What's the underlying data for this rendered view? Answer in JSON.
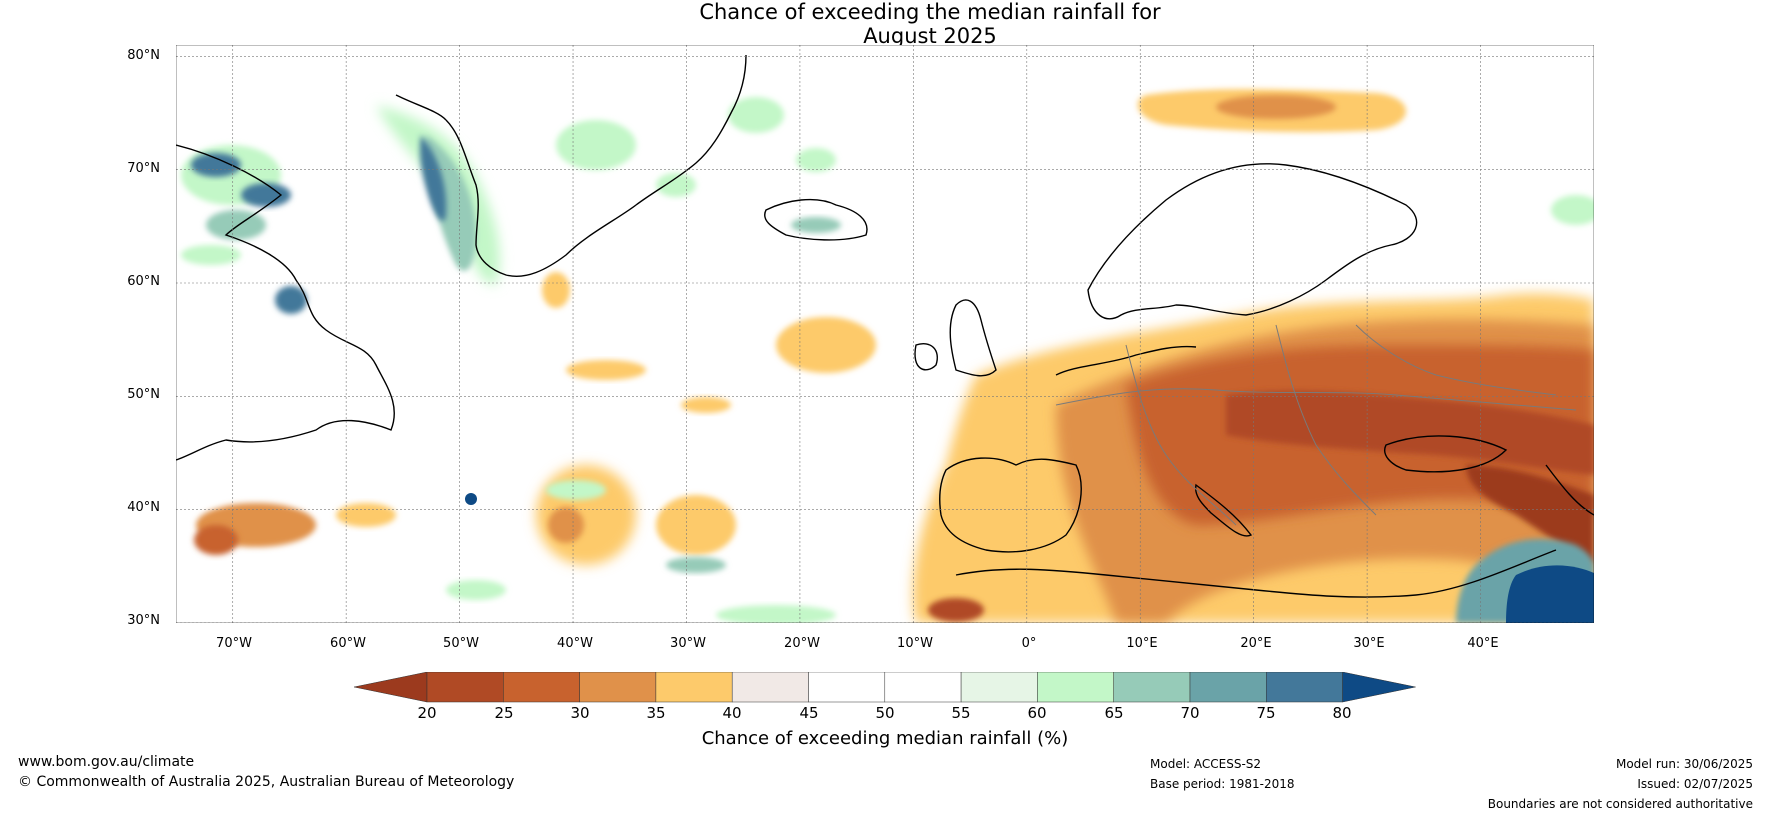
{
  "title_line1": "Chance of exceeding the median rainfall for",
  "title_line2": "August 2025",
  "latitude_labels": [
    "80°N",
    "70°N",
    "60°N",
    "50°N",
    "40°N",
    "30°N"
  ],
  "longitude_labels": [
    "70°W",
    "60°W",
    "50°W",
    "40°W",
    "30°W",
    "20°W",
    "10°W",
    "0°",
    "10°E",
    "20°E",
    "30°E",
    "40°E"
  ],
  "map_extent": {
    "lon_min": -75,
    "lon_max": 50,
    "lat_min": 30,
    "lat_max": 81
  },
  "colorbar": {
    "title": "Chance of exceeding median rainfall (%)",
    "tick_labels": [
      "20",
      "25",
      "30",
      "35",
      "40",
      "45",
      "50",
      "55",
      "60",
      "65",
      "70",
      "75",
      "80"
    ],
    "colors": [
      "#9c3a1e",
      "#b04a25",
      "#c8622e",
      "#e0914a",
      "#fdca6b",
      "#f1e9e6",
      "#ffffff",
      "#ffffff",
      "#e6f5e6",
      "#c3f7c8",
      "#96cbb8",
      "#6aa3a8",
      "#43789a",
      "#0e4a85"
    ]
  },
  "footer": {
    "website": "www.bom.gov.au/climate",
    "copyright": "© Commonwealth of Australia 2025, Australian Bureau of Meteorology",
    "model": "Model: ACCESS-S2",
    "base_period": "Base period: 1981-2018",
    "model_run": "Model run: 30/06/2025",
    "issued": "Issued: 02/07/2025",
    "disclaimer": "Boundaries are not considered authoritative"
  }
}
